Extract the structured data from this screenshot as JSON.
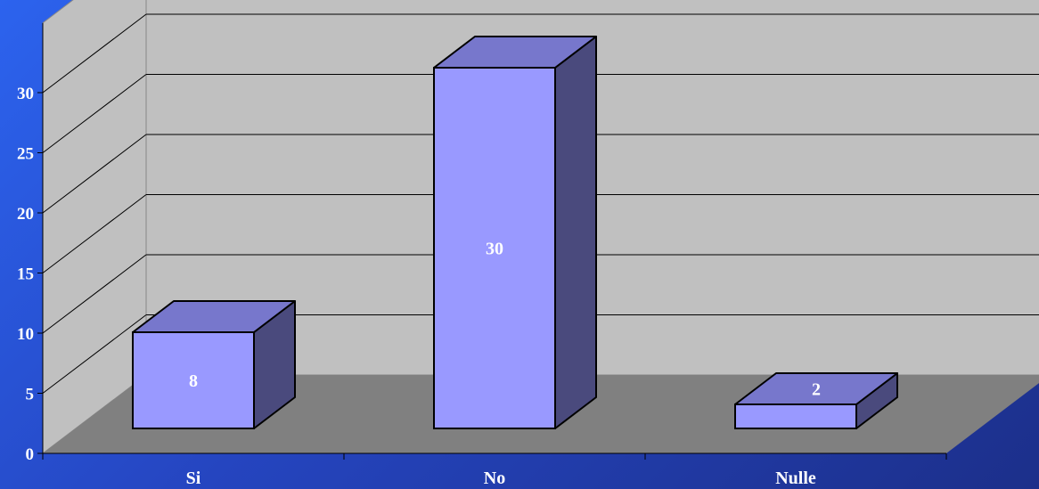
{
  "chart_data": {
    "type": "bar",
    "style": "3d-column",
    "categories": [
      "Si",
      "No",
      "Nulle"
    ],
    "values": [
      8,
      30,
      2
    ],
    "data_labels": [
      "8",
      "30",
      "2"
    ],
    "yticks": [
      "0",
      "5",
      "10",
      "15",
      "20",
      "25",
      "30"
    ],
    "ylim": [
      0,
      30
    ],
    "grid": true,
    "legend": "none",
    "colors": {
      "bar_front": "#9999ff",
      "bar_top": "#7777cc",
      "bar_side": "#4a4a7d",
      "back_wall": "#c0c0c0",
      "side_wall": "#c0c0c0",
      "floor": "#808080",
      "background": "#2545c0"
    }
  }
}
